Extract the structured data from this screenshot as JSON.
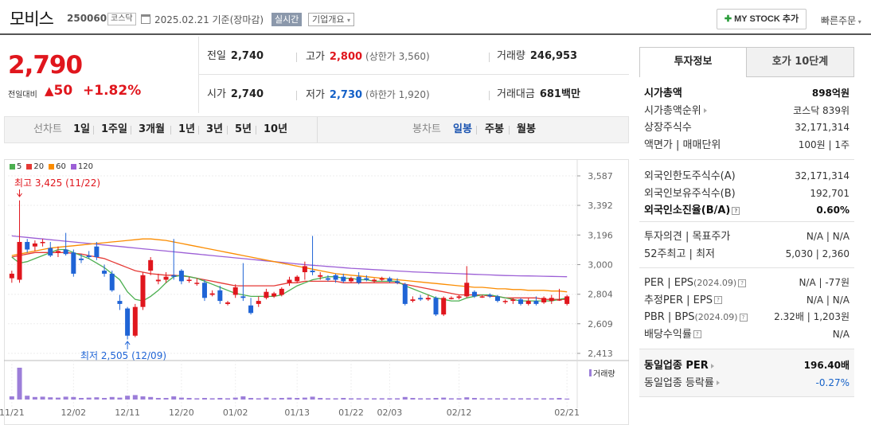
{
  "header": {
    "name": "모비스",
    "code": "250060",
    "market": "코스닥",
    "date": "2025.02.21 기준(장마감)",
    "realtime": "실시간",
    "overview": "기업개요",
    "mystock": "MY STOCK 추가",
    "quick": "빠른주문"
  },
  "price": {
    "now": "2,790",
    "change_label": "전일대비",
    "change": "50",
    "change_pct": "+1.82%"
  },
  "quote": {
    "prev_label": "전일",
    "prev": "2,740",
    "high_label": "고가",
    "high": "2,800",
    "upper": "(상한가 3,560)",
    "volume_label": "거래량",
    "volume": "246,953",
    "open_label": "시가",
    "open": "2,740",
    "low_label": "저가",
    "low": "2,730",
    "lower": "(하한가 1,920)",
    "amount_label": "거래대금",
    "amount": "681",
    "amount_unit": "백만"
  },
  "toolbar": {
    "line_title": "선차트",
    "line_items": [
      "1일",
      "1주일",
      "3개월",
      "1년",
      "3년",
      "5년",
      "10년"
    ],
    "candle_title": "봉차트",
    "candle_items": [
      "일봉",
      "주봉",
      "월봉"
    ],
    "active_candle": "일봉"
  },
  "legend": [
    {
      "label": "5",
      "color": "#4caf50"
    },
    {
      "label": "20",
      "color": "#e53935"
    },
    {
      "label": "60",
      "color": "#fb8c00"
    },
    {
      "label": "120",
      "color": "#9c5fd6"
    }
  ],
  "chart_data": {
    "type": "candlestick",
    "y_ticks": [
      3587,
      3392,
      3196,
      3000,
      2804,
      2609,
      2413
    ],
    "x_labels": [
      "11/21",
      "12/02",
      "12/11",
      "12/20",
      "01/02",
      "01/13",
      "01/22",
      "02/03",
      "02/12",
      "02/21"
    ],
    "high_note": "최고 3,425 (11/22)",
    "low_note": "최저 2,505 (12/09)",
    "volume_label": "거래량",
    "candles": [
      {
        "o": 2910,
        "h": 2960,
        "l": 2880,
        "c": 2940
      },
      {
        "o": 2900,
        "h": 3425,
        "l": 2880,
        "c": 3150
      },
      {
        "o": 3150,
        "h": 3170,
        "l": 3080,
        "c": 3100
      },
      {
        "o": 3120,
        "h": 3160,
        "l": 3090,
        "c": 3140
      },
      {
        "o": 3150,
        "h": 3170,
        "l": 3120,
        "c": 3150
      },
      {
        "o": 3110,
        "h": 3150,
        "l": 3050,
        "c": 3060
      },
      {
        "o": 3080,
        "h": 3120,
        "l": 3050,
        "c": 3090
      },
      {
        "o": 3100,
        "h": 3210,
        "l": 3060,
        "c": 3070
      },
      {
        "o": 3080,
        "h": 3100,
        "l": 2920,
        "c": 2940
      },
      {
        "o": 3040,
        "h": 3070,
        "l": 3010,
        "c": 3030
      },
      {
        "o": 3060,
        "h": 3090,
        "l": 3040,
        "c": 3050
      },
      {
        "o": 3120,
        "h": 3150,
        "l": 3030,
        "c": 3050
      },
      {
        "o": 2960,
        "h": 3000,
        "l": 2920,
        "c": 2940
      },
      {
        "o": 2940,
        "h": 2960,
        "l": 2820,
        "c": 2830
      },
      {
        "o": 2760,
        "h": 2800,
        "l": 2700,
        "c": 2740
      },
      {
        "o": 2710,
        "h": 2720,
        "l": 2505,
        "c": 2530
      },
      {
        "o": 2530,
        "h": 2740,
        "l": 2520,
        "c": 2720
      },
      {
        "o": 2720,
        "h": 2950,
        "l": 2700,
        "c": 2930
      },
      {
        "o": 2960,
        "h": 3050,
        "l": 2930,
        "c": 3030
      },
      {
        "o": 2890,
        "h": 2940,
        "l": 2870,
        "c": 2900
      },
      {
        "o": 2900,
        "h": 2950,
        "l": 2880,
        "c": 2920
      },
      {
        "o": 2930,
        "h": 3170,
        "l": 2900,
        "c": 2920
      },
      {
        "o": 2960,
        "h": 2970,
        "l": 2870,
        "c": 2890
      },
      {
        "o": 2900,
        "h": 2920,
        "l": 2880,
        "c": 2900
      },
      {
        "o": 2880,
        "h": 2910,
        "l": 2860,
        "c": 2880
      },
      {
        "o": 2880,
        "h": 2900,
        "l": 2760,
        "c": 2780
      },
      {
        "o": 2800,
        "h": 2830,
        "l": 2790,
        "c": 2810
      },
      {
        "o": 2830,
        "h": 2860,
        "l": 2740,
        "c": 2760
      },
      {
        "o": 2740,
        "h": 2760,
        "l": 2730,
        "c": 2750
      },
      {
        "o": 2800,
        "h": 2870,
        "l": 2780,
        "c": 2850
      },
      {
        "o": 2790,
        "h": 3010,
        "l": 2760,
        "c": 2780
      },
      {
        "o": 2730,
        "h": 2780,
        "l": 2670,
        "c": 2680
      },
      {
        "o": 2740,
        "h": 2790,
        "l": 2720,
        "c": 2760
      },
      {
        "o": 2780,
        "h": 2840,
        "l": 2770,
        "c": 2820
      },
      {
        "o": 2790,
        "h": 2820,
        "l": 2780,
        "c": 2810
      },
      {
        "o": 2800,
        "h": 2850,
        "l": 2790,
        "c": 2840
      },
      {
        "o": 2880,
        "h": 2920,
        "l": 2860,
        "c": 2900
      },
      {
        "o": 2890,
        "h": 2930,
        "l": 2880,
        "c": 2920
      },
      {
        "o": 2950,
        "h": 3020,
        "l": 2900,
        "c": 2990
      },
      {
        "o": 2960,
        "h": 3190,
        "l": 2930,
        "c": 2950
      },
      {
        "o": 2920,
        "h": 2950,
        "l": 2900,
        "c": 2930
      },
      {
        "o": 2910,
        "h": 2930,
        "l": 2890,
        "c": 2900
      },
      {
        "o": 2930,
        "h": 2940,
        "l": 2880,
        "c": 2900
      },
      {
        "o": 2920,
        "h": 2940,
        "l": 2880,
        "c": 2890
      },
      {
        "o": 2890,
        "h": 2920,
        "l": 2880,
        "c": 2910
      },
      {
        "o": 2920,
        "h": 2950,
        "l": 2870,
        "c": 2880
      },
      {
        "o": 2910,
        "h": 2930,
        "l": 2890,
        "c": 2900
      },
      {
        "o": 2890,
        "h": 2910,
        "l": 2880,
        "c": 2900
      },
      {
        "o": 2900,
        "h": 2920,
        "l": 2890,
        "c": 2910
      },
      {
        "o": 2910,
        "h": 2920,
        "l": 2880,
        "c": 2890
      },
      {
        "o": 2890,
        "h": 2910,
        "l": 2870,
        "c": 2880
      },
      {
        "o": 2870,
        "h": 2880,
        "l": 2730,
        "c": 2740
      },
      {
        "o": 2760,
        "h": 2790,
        "l": 2750,
        "c": 2770
      },
      {
        "o": 2780,
        "h": 2800,
        "l": 2760,
        "c": 2770
      },
      {
        "o": 2770,
        "h": 2800,
        "l": 2760,
        "c": 2780
      },
      {
        "o": 2780,
        "h": 2790,
        "l": 2660,
        "c": 2670
      },
      {
        "o": 2670,
        "h": 2790,
        "l": 2660,
        "c": 2780
      },
      {
        "o": 2780,
        "h": 2790,
        "l": 2770,
        "c": 2780
      },
      {
        "o": 2780,
        "h": 2800,
        "l": 2770,
        "c": 2790
      },
      {
        "o": 2790,
        "h": 2990,
        "l": 2780,
        "c": 2880
      },
      {
        "o": 2820,
        "h": 2830,
        "l": 2780,
        "c": 2790
      },
      {
        "o": 2790,
        "h": 2800,
        "l": 2780,
        "c": 2790
      },
      {
        "o": 2800,
        "h": 2810,
        "l": 2780,
        "c": 2790
      },
      {
        "o": 2790,
        "h": 2800,
        "l": 2750,
        "c": 2760
      },
      {
        "o": 2760,
        "h": 2770,
        "l": 2740,
        "c": 2760
      },
      {
        "o": 2760,
        "h": 2780,
        "l": 2740,
        "c": 2770
      },
      {
        "o": 2770,
        "h": 2780,
        "l": 2730,
        "c": 2740
      },
      {
        "o": 2740,
        "h": 2780,
        "l": 2730,
        "c": 2760
      },
      {
        "o": 2760,
        "h": 2790,
        "l": 2730,
        "c": 2740
      },
      {
        "o": 2750,
        "h": 2790,
        "l": 2740,
        "c": 2780
      },
      {
        "o": 2760,
        "h": 2800,
        "l": 2740,
        "c": 2780
      },
      {
        "o": 2770,
        "h": 2840,
        "l": 2760,
        "c": 2770
      },
      {
        "o": 2740,
        "h": 2800,
        "l": 2730,
        "c": 2790
      }
    ],
    "volumes": [
      10,
      100,
      12,
      8,
      9,
      7,
      6,
      9,
      8,
      5,
      6,
      7,
      5,
      8,
      6,
      12,
      14,
      10,
      8,
      5,
      5,
      10,
      6,
      5,
      4,
      5,
      4,
      5,
      4,
      6,
      10,
      5,
      4,
      6,
      4,
      5,
      6,
      5,
      6,
      9,
      5,
      4,
      4,
      5,
      4,
      4,
      4,
      4,
      4,
      4,
      4,
      8,
      5,
      4,
      4,
      5,
      6,
      4,
      4,
      7,
      5,
      4,
      4,
      4,
      4,
      4,
      4,
      4,
      4,
      4,
      4,
      5,
      3
    ],
    "ma5": [
      3050,
      3010,
      3020,
      3040,
      3060,
      3080,
      3100,
      3100,
      3080,
      3060,
      3040,
      3010,
      2980,
      2940,
      2900,
      2820,
      2770,
      2760,
      2790,
      2830,
      2880,
      2920,
      2930,
      2920,
      2910,
      2890,
      2870,
      2850,
      2830,
      2810,
      2800,
      2790,
      2790,
      2790,
      2790,
      2800,
      2830,
      2860,
      2880,
      2900,
      2910,
      2920,
      2920,
      2910,
      2910,
      2900,
      2900,
      2890,
      2890,
      2890,
      2890,
      2860,
      2840,
      2820,
      2800,
      2780,
      2770,
      2760,
      2760,
      2780,
      2790,
      2800,
      2800,
      2790,
      2780,
      2770,
      2760,
      2760,
      2760,
      2760,
      2760,
      2770,
      2780
    ],
    "ma20": [
      3050,
      3060,
      3070,
      3080,
      3080,
      3080,
      3080,
      3080,
      3075,
      3070,
      3060,
      3050,
      3040,
      3020,
      3000,
      2980,
      2960,
      2950,
      2940,
      2935,
      2930,
      2930,
      2925,
      2920,
      2910,
      2900,
      2890,
      2880,
      2870,
      2860,
      2860,
      2860,
      2860,
      2860,
      2860,
      2870,
      2880,
      2880,
      2890,
      2890,
      2890,
      2890,
      2890,
      2880,
      2880,
      2880,
      2880,
      2880,
      2880,
      2880,
      2880,
      2870,
      2860,
      2850,
      2840,
      2830,
      2820,
      2810,
      2800,
      2800,
      2800,
      2800,
      2790,
      2790,
      2780,
      2780,
      2780,
      2780,
      2780,
      2770,
      2770,
      2770,
      2770
    ],
    "ma60": [
      3060,
      3070,
      3080,
      3090,
      3100,
      3110,
      3115,
      3120,
      3125,
      3130,
      3135,
      3140,
      3145,
      3150,
      3155,
      3160,
      3165,
      3170,
      3170,
      3165,
      3160,
      3150,
      3140,
      3130,
      3120,
      3110,
      3100,
      3090,
      3080,
      3070,
      3060,
      3050,
      3040,
      3030,
      3020,
      3010,
      3000,
      2990,
      2980,
      2970,
      2960,
      2950,
      2940,
      2935,
      2930,
      2925,
      2920,
      2915,
      2910,
      2905,
      2900,
      2895,
      2890,
      2885,
      2880,
      2875,
      2870,
      2865,
      2860,
      2855,
      2850,
      2850,
      2845,
      2840,
      2840,
      2835,
      2835,
      2830,
      2830,
      2830,
      2825,
      2825,
      2820
    ],
    "ma120": [
      3190,
      3185,
      3180,
      3175,
      3170,
      3165,
      3160,
      3155,
      3150,
      3145,
      3140,
      3135,
      3130,
      3125,
      3120,
      3115,
      3110,
      3105,
      3100,
      3095,
      3090,
      3085,
      3080,
      3075,
      3070,
      3065,
      3060,
      3055,
      3050,
      3045,
      3040,
      3035,
      3030,
      3025,
      3020,
      3015,
      3010,
      3005,
      3000,
      2996,
      2992,
      2988,
      2984,
      2980,
      2976,
      2973,
      2970,
      2967,
      2964,
      2961,
      2958,
      2955,
      2952,
      2950,
      2948,
      2946,
      2944,
      2942,
      2940,
      2938,
      2936,
      2934,
      2932,
      2930,
      2928,
      2927,
      2926,
      2925,
      2924,
      2923,
      2922,
      2921,
      2920
    ]
  },
  "panel": {
    "tab_info": "투자정보",
    "tab_order": "호가 10단계",
    "s1": [
      {
        "l": "시가총액",
        "r": "898억원",
        "bold": true
      },
      {
        "l": "시가총액순위",
        "r": "코스닥 839위",
        "tri": true
      },
      {
        "l": "상장주식수",
        "r": "32,171,314"
      },
      {
        "l": "액면가 | 매매단위",
        "r": "100원 | 1주"
      }
    ],
    "s2": [
      {
        "l": "외국인한도주식수(A)",
        "r": "32,171,314"
      },
      {
        "l": "외국인보유주식수(B)",
        "r": "192,701"
      },
      {
        "l": "외국인소진율(B/A)",
        "r": "0.60%",
        "bold": true,
        "q": true
      }
    ],
    "s3": [
      {
        "l": "투자의견 | 목표주가",
        "r": "N/A | N/A"
      },
      {
        "l": "52주최고 | 최저",
        "r": "5,030 | 2,360"
      }
    ],
    "s4": [
      {
        "l": "PER | EPS",
        "sub": "(2024.09)",
        "r": "N/A | -77원",
        "q": true
      },
      {
        "l": "추정PER | EPS",
        "r": "N/A | N/A",
        "q": true
      },
      {
        "l": "PBR | BPS",
        "sub": "(2024.09)",
        "r": "2.32배 | 1,203원",
        "q": true
      },
      {
        "l": "배당수익률",
        "r": "N/A",
        "q": true
      }
    ],
    "s5": [
      {
        "l": "동일업종 PER",
        "r": "196.40배",
        "bold": true,
        "tri": true
      },
      {
        "l": "동일업종 등락률",
        "r": "-0.27%",
        "tri": true,
        "down": true
      }
    ]
  }
}
